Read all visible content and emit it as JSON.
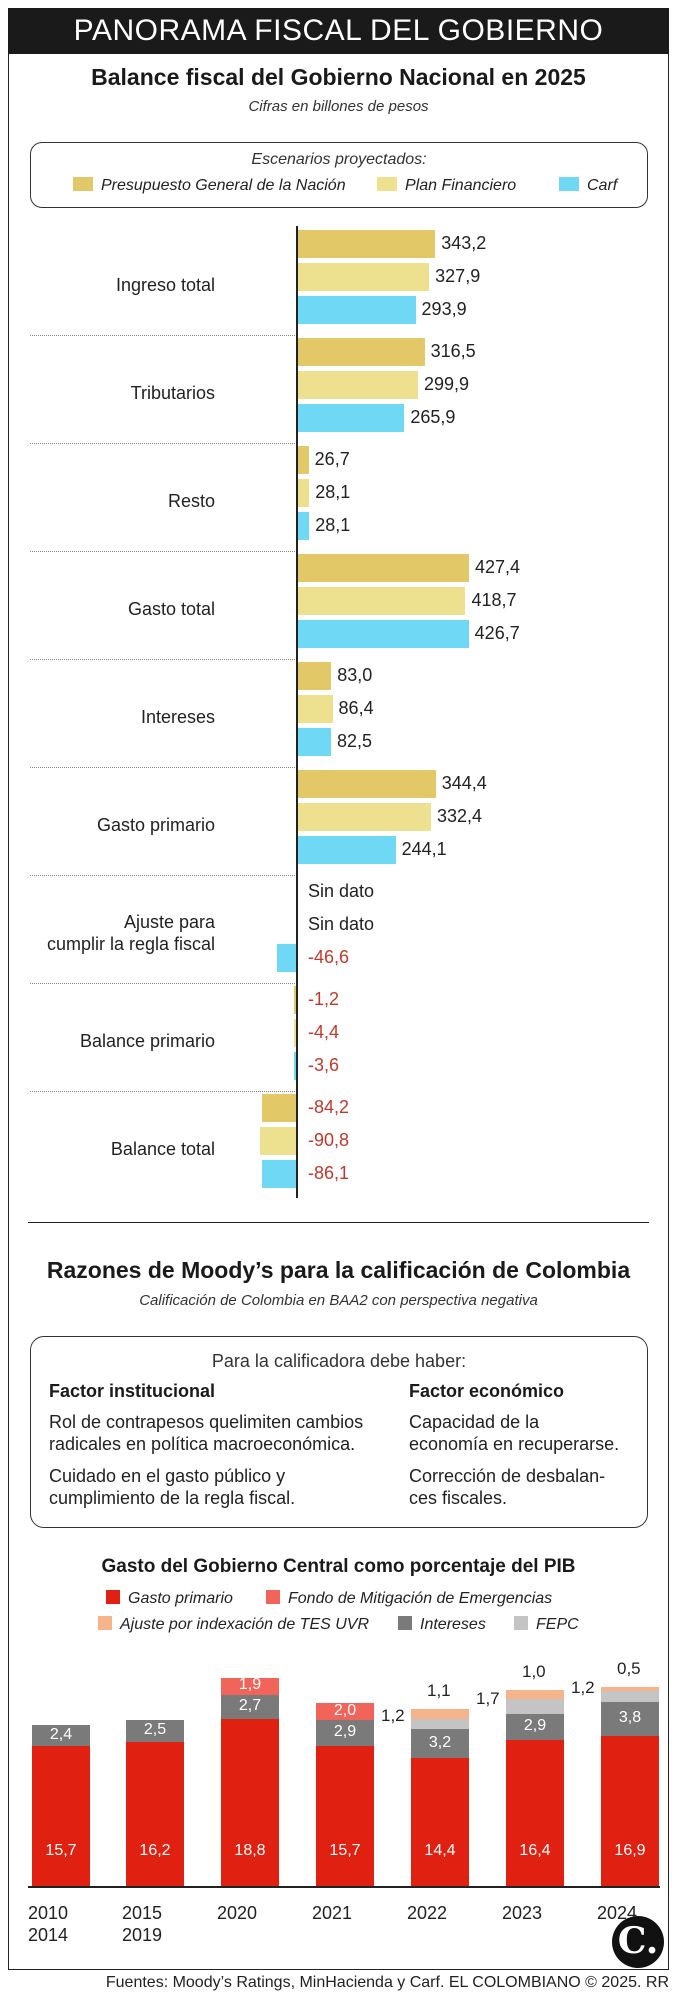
{
  "banner": "PANORAMA FISCAL DEL GOBIERNO",
  "colors": {
    "pgn": "#e2c867",
    "plan": "#ede08e",
    "carf": "#6fd8f5",
    "gasto": "#e02010",
    "fondo": "#f0645a",
    "ajuste": "#f5b48c",
    "intereses": "#7a7a7a",
    "fepc": "#c4c4c4"
  },
  "chart_data": [
    {
      "type": "bar",
      "title": "Balance fiscal del Gobierno Nacional en 2025",
      "subtitle": "Cifras en billones de pesos",
      "legend_title": "Escenarios proyectados:",
      "categories": [
        "Ingreso total",
        "Tributarios",
        "Resto",
        "Gasto total",
        "Intereses",
        "Gasto primario",
        "Ajuste para cumplir la regla fiscal",
        "Balance primario",
        "Balance total"
      ],
      "series": [
        {
          "name": "Presupuesto General de la Nación",
          "values": [
            343.2,
            316.5,
            26.7,
            427.4,
            83.0,
            344.4,
            null,
            -1.2,
            -84.2
          ]
        },
        {
          "name": "Plan Financiero",
          "values": [
            327.9,
            299.9,
            28.1,
            418.7,
            86.4,
            332.4,
            null,
            -4.4,
            -90.8
          ]
        },
        {
          "name": "Carf",
          "values": [
            293.9,
            265.9,
            28.1,
            426.7,
            82.5,
            244.1,
            -46.6,
            -3.6,
            -86.1
          ]
        }
      ],
      "value_labels": [
        [
          "343,2",
          "327,9",
          "293,9"
        ],
        [
          "316,5",
          "299,9",
          "265,9"
        ],
        [
          "26,7",
          "28,1",
          "28,1"
        ],
        [
          "427,4",
          "418,7",
          "426,7"
        ],
        [
          "83,0",
          "86,4",
          "82,5"
        ],
        [
          "344,4",
          "332,4",
          "244,1"
        ],
        [
          "Sin dato",
          "Sin dato",
          "-46,6"
        ],
        [
          "-1,2",
          "-4,4",
          "-3,6"
        ],
        [
          "-84,2",
          "-90,8",
          "-86,1"
        ]
      ],
      "orientation": "horizontal"
    },
    {
      "type": "bar",
      "stacked": true,
      "title": "Gasto del Gobierno Central como porcentaje del PIB",
      "categories": [
        "2010 2014",
        "2015 2019",
        "2020",
        "2021",
        "2022",
        "2023",
        "2024"
      ],
      "series": [
        {
          "name": "Gasto primario",
          "values": [
            15.7,
            16.2,
            18.8,
            15.7,
            14.4,
            16.4,
            16.9
          ]
        },
        {
          "name": "Intereses",
          "values": [
            2.4,
            2.5,
            2.7,
            2.9,
            3.2,
            2.9,
            3.8
          ]
        },
        {
          "name": "Fondo de Mitigación de Emergencias",
          "values": [
            0,
            0,
            1.9,
            2.0,
            0,
            0,
            0
          ]
        },
        {
          "name": "FEPC",
          "values": [
            0,
            0,
            0,
            0,
            1.2,
            1.7,
            1.2
          ]
        },
        {
          "name": "Ajuste por indexación de TES UVR",
          "values": [
            0,
            0,
            0,
            0,
            1.1,
            1.0,
            0.5
          ]
        }
      ]
    }
  ],
  "moodys": {
    "title": "Razones de Moody’s para la calificación de Colombia",
    "subtitle": "Calificación de Colombia en BAA2 con perspectiva negativa",
    "box_title": "Para la calificadora debe haber:",
    "col1_head": "Factor institucional",
    "col1_p1": [
      "Rol de contrapesos quelimiten cambios",
      "radicales en política macroeconómica."
    ],
    "col1_p2": [
      "Cuidado en el gasto público y",
      "cumplimiento de la regla fiscal."
    ],
    "col2_head": "Factor económico",
    "col2_p1": [
      "Capacidad de la",
      "economía en recuperarse."
    ],
    "col2_p2": [
      "Corrección de desbalan-",
      "ces fiscales."
    ]
  },
  "bottom_labels": {
    "gasto": [
      "15,7",
      "16,2",
      "18,8",
      "15,7",
      "14,4",
      "16,4",
      "16,9"
    ],
    "intereses": [
      "2,4",
      "2,5",
      "2,7",
      "2,9",
      "3,2",
      "2,9",
      "3,8"
    ],
    "fondo": [
      "",
      "",
      "1,9",
      "2,0",
      "",
      "",
      ""
    ],
    "fepc": [
      "",
      "",
      "",
      "",
      "1,2",
      "1,7",
      "1,2"
    ],
    "ajuste": [
      "",
      "",
      "",
      "",
      "1,1",
      "1,0",
      "0,5"
    ],
    "years": [
      [
        "2010",
        "2014"
      ],
      [
        "2015",
        "2019"
      ],
      [
        "2020",
        ""
      ],
      [
        "2021",
        ""
      ],
      [
        "2022",
        ""
      ],
      [
        "2023",
        ""
      ],
      [
        "2024",
        ""
      ]
    ]
  },
  "footer": "Fuentes: Moody’s Ratings, MinHacienda y Carf. EL COLOMBIANO © 2025. RR",
  "logo": "C."
}
